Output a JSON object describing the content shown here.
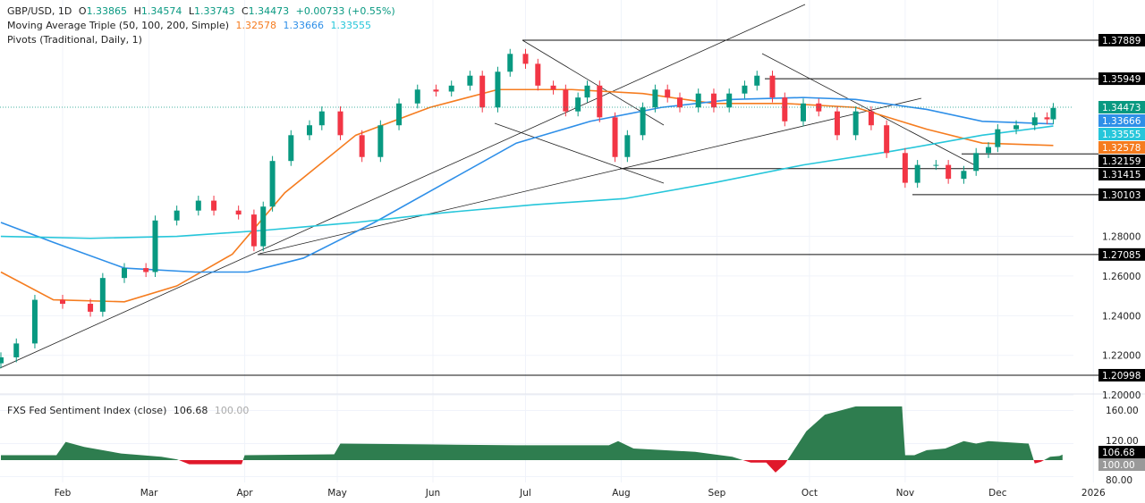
{
  "header": {
    "symbol": "GBP/USD, 1D",
    "open_label": "O",
    "open": "1.33865",
    "high_label": "H",
    "high": "1.34574",
    "low_label": "L",
    "low": "1.33743",
    "close_label": "C",
    "close": "1.34473",
    "change": "+0.00733 (+0.55%)",
    "ma_label": "Moving Average Triple (50, 100, 200, Simple)",
    "ma50": "1.32578",
    "ma100": "1.33666",
    "ma200": "1.33555",
    "pivots_label": "Pivots (Traditional, Daily, 1)"
  },
  "sub_header": {
    "label": "FXS Fed Sentiment Index (close)",
    "value": "106.68",
    "base": "100.00"
  },
  "colors": {
    "up": "#089981",
    "down": "#f23645",
    "ma50": "#f57c1f",
    "ma100": "#2e8fe8",
    "ma200": "#26c6da",
    "sent_pos": "#2e7d4f",
    "sent_neg": "#e0182b"
  },
  "chart_data": [
    {
      "type": "candlestick",
      "title": "GBP/USD, 1D",
      "ylim": [
        1.19,
        1.39
      ],
      "y_ticks": [
        "1.20000",
        "1.22000",
        "1.24000",
        "1.26000",
        "1.28000"
      ],
      "x_ticks": [
        "Feb",
        "Mar",
        "Apr",
        "May",
        "Jun",
        "Jul",
        "Aug",
        "Sep",
        "Oct",
        "Nov",
        "Dec",
        "2026"
      ],
      "price_labels": [
        "1.37889",
        "1.35949",
        "1.34473",
        "1.33666",
        "1.33555",
        "1.32578",
        "1.32159",
        "1.31415",
        "1.30103",
        "1.27085",
        "1.20998"
      ],
      "pivot_levels": [
        1.37889,
        1.35949,
        1.32159,
        1.31415,
        1.30103,
        1.27085,
        1.20998
      ],
      "closes": [
        [
          "2025-01-12",
          1.219
        ],
        [
          "2025-01-17",
          1.226
        ],
        [
          "2025-01-23",
          1.248
        ],
        [
          "2025-02-01",
          1.246
        ],
        [
          "2025-02-10",
          1.242
        ],
        [
          "2025-02-14",
          1.259
        ],
        [
          "2025-02-21",
          1.264
        ],
        [
          "2025-02-28",
          1.262
        ],
        [
          "2025-03-03",
          1.288
        ],
        [
          "2025-03-10",
          1.293
        ],
        [
          "2025-03-17",
          1.298
        ],
        [
          "2025-03-22",
          1.293
        ],
        [
          "2025-03-30",
          1.291
        ],
        [
          "2025-04-04",
          1.275
        ],
        [
          "2025-04-07",
          1.295
        ],
        [
          "2025-04-10",
          1.318
        ],
        [
          "2025-04-16",
          1.331
        ],
        [
          "2025-04-22",
          1.336
        ],
        [
          "2025-04-26",
          1.343
        ],
        [
          "2025-05-02",
          1.331
        ],
        [
          "2025-05-09",
          1.32
        ],
        [
          "2025-05-15",
          1.336
        ],
        [
          "2025-05-21",
          1.347
        ],
        [
          "2025-05-27",
          1.354
        ],
        [
          "2025-06-02",
          1.353
        ],
        [
          "2025-06-07",
          1.356
        ],
        [
          "2025-06-13",
          1.361
        ],
        [
          "2025-06-17",
          1.345
        ],
        [
          "2025-06-22",
          1.363
        ],
        [
          "2025-06-26",
          1.372
        ],
        [
          "2025-07-01",
          1.367
        ],
        [
          "2025-07-05",
          1.356
        ],
        [
          "2025-07-10",
          1.354
        ],
        [
          "2025-07-14",
          1.343
        ],
        [
          "2025-07-18",
          1.35
        ],
        [
          "2025-07-21",
          1.356
        ],
        [
          "2025-07-25",
          1.34
        ],
        [
          "2025-07-30",
          1.32
        ],
        [
          "2025-08-03",
          1.331
        ],
        [
          "2025-08-08",
          1.345
        ],
        [
          "2025-08-12",
          1.354
        ],
        [
          "2025-08-16",
          1.35
        ],
        [
          "2025-08-20",
          1.345
        ],
        [
          "2025-08-26",
          1.352
        ],
        [
          "2025-08-31",
          1.345
        ],
        [
          "2025-09-05",
          1.352
        ],
        [
          "2025-09-10",
          1.356
        ],
        [
          "2025-09-14",
          1.361
        ],
        [
          "2025-09-19",
          1.35
        ],
        [
          "2025-09-23",
          1.338
        ],
        [
          "2025-09-29",
          1.347
        ],
        [
          "2025-10-04",
          1.343
        ],
        [
          "2025-10-10",
          1.331
        ],
        [
          "2025-10-16",
          1.343
        ],
        [
          "2025-10-21",
          1.336
        ],
        [
          "2025-10-26",
          1.322
        ],
        [
          "2025-11-01",
          1.307
        ],
        [
          "2025-11-05",
          1.316
        ],
        [
          "2025-11-11",
          1.316
        ],
        [
          "2025-11-15",
          1.309
        ],
        [
          "2025-11-20",
          1.313
        ],
        [
          "2025-11-24",
          1.322
        ],
        [
          "2025-11-28",
          1.325
        ],
        [
          "2025-12-01",
          1.334
        ],
        [
          "2025-12-07",
          1.336
        ],
        [
          "2025-12-13",
          1.34
        ],
        [
          "2025-12-17",
          1.339
        ],
        [
          "2025-12-19",
          1.34473
        ]
      ],
      "series": [
        {
          "name": "MA 50",
          "points": [
            [
              "2025-01-12",
              1.262
            ],
            [
              "2025-01-29",
              1.248
            ],
            [
              "2025-02-21",
              1.247
            ],
            [
              "2025-03-10",
              1.255
            ],
            [
              "2025-03-28",
              1.271
            ],
            [
              "2025-04-14",
              1.302
            ],
            [
              "2025-05-07",
              1.331
            ],
            [
              "2025-05-31",
              1.345
            ],
            [
              "2025-06-22",
              1.354
            ],
            [
              "2025-07-16",
              1.354
            ],
            [
              "2025-08-08",
              1.352
            ],
            [
              "2025-08-31",
              1.347
            ],
            [
              "2025-09-23",
              1.347
            ],
            [
              "2025-10-16",
              1.345
            ],
            [
              "2025-11-08",
              1.334
            ],
            [
              "2025-11-26",
              1.327
            ],
            [
              "2025-12-19",
              1.3258
            ]
          ]
        },
        {
          "name": "MA 100",
          "points": [
            [
              "2025-01-12",
              1.287
            ],
            [
              "2025-01-29",
              1.277
            ],
            [
              "2025-02-21",
              1.264
            ],
            [
              "2025-03-16",
              1.262
            ],
            [
              "2025-04-02",
              1.262
            ],
            [
              "2025-04-20",
              1.269
            ],
            [
              "2025-05-13",
              1.287
            ],
            [
              "2025-06-05",
              1.307
            ],
            [
              "2025-06-28",
              1.327
            ],
            [
              "2025-07-22",
              1.338
            ],
            [
              "2025-08-14",
              1.345
            ],
            [
              "2025-09-06",
              1.349
            ],
            [
              "2025-09-29",
              1.35
            ],
            [
              "2025-10-16",
              1.349
            ],
            [
              "2025-11-08",
              1.344
            ],
            [
              "2025-11-26",
              1.338
            ],
            [
              "2025-12-19",
              1.3367
            ]
          ]
        },
        {
          "name": "MA 200",
          "points": [
            [
              "2025-01-12",
              1.28
            ],
            [
              "2025-02-10",
              1.279
            ],
            [
              "2025-03-10",
              1.28
            ],
            [
              "2025-04-07",
              1.283
            ],
            [
              "2025-05-07",
              1.287
            ],
            [
              "2025-06-05",
              1.292
            ],
            [
              "2025-07-04",
              1.296
            ],
            [
              "2025-08-02",
              1.299
            ],
            [
              "2025-08-31",
              1.307
            ],
            [
              "2025-09-29",
              1.316
            ],
            [
              "2025-10-28",
              1.323
            ],
            [
              "2025-11-26",
              1.331
            ],
            [
              "2025-12-19",
              1.3356
            ]
          ]
        }
      ]
    },
    {
      "type": "area",
      "title": "FXS Fed Sentiment Index (close)",
      "ylim": [
        78,
        170
      ],
      "baseline": 100,
      "y_ticks": [
        "160.00",
        "120.00",
        "80.00"
      ],
      "points": [
        [
          "2025-01-12",
          106
        ],
        [
          "2025-01-30",
          106
        ],
        [
          "2025-02-02",
          122
        ],
        [
          "2025-02-08",
          116
        ],
        [
          "2025-02-20",
          108
        ],
        [
          "2025-03-05",
          104
        ],
        [
          "2025-03-10",
          101
        ],
        [
          "2025-03-14",
          95
        ],
        [
          "2025-03-31",
          95
        ],
        [
          "2025-04-01",
          106
        ],
        [
          "2025-04-30",
          107
        ],
        [
          "2025-05-02",
          120
        ],
        [
          "2025-05-30",
          119
        ],
        [
          "2025-06-28",
          118
        ],
        [
          "2025-07-28",
          118
        ],
        [
          "2025-07-31",
          123
        ],
        [
          "2025-08-05",
          114
        ],
        [
          "2025-08-25",
          110
        ],
        [
          "2025-09-06",
          104
        ],
        [
          "2025-09-12",
          97
        ],
        [
          "2025-09-17",
          97
        ],
        [
          "2025-09-20",
          85
        ],
        [
          "2025-09-23",
          95
        ],
        [
          "2025-09-30",
          135
        ],
        [
          "2025-10-06",
          155
        ],
        [
          "2025-10-16",
          165
        ],
        [
          "2025-10-31",
          165
        ],
        [
          "2025-11-01",
          106
        ],
        [
          "2025-11-04",
          106
        ],
        [
          "2025-11-08",
          112
        ],
        [
          "2025-11-14",
          114
        ],
        [
          "2025-11-20",
          123
        ],
        [
          "2025-11-24",
          120
        ],
        [
          "2025-11-28",
          123
        ],
        [
          "2025-12-11",
          120
        ],
        [
          "2025-12-13",
          96
        ],
        [
          "2025-12-15",
          98
        ],
        [
          "2025-12-18",
          104
        ],
        [
          "2025-12-21",
          105
        ],
        [
          "2025-12-22",
          106.68
        ]
      ]
    }
  ]
}
